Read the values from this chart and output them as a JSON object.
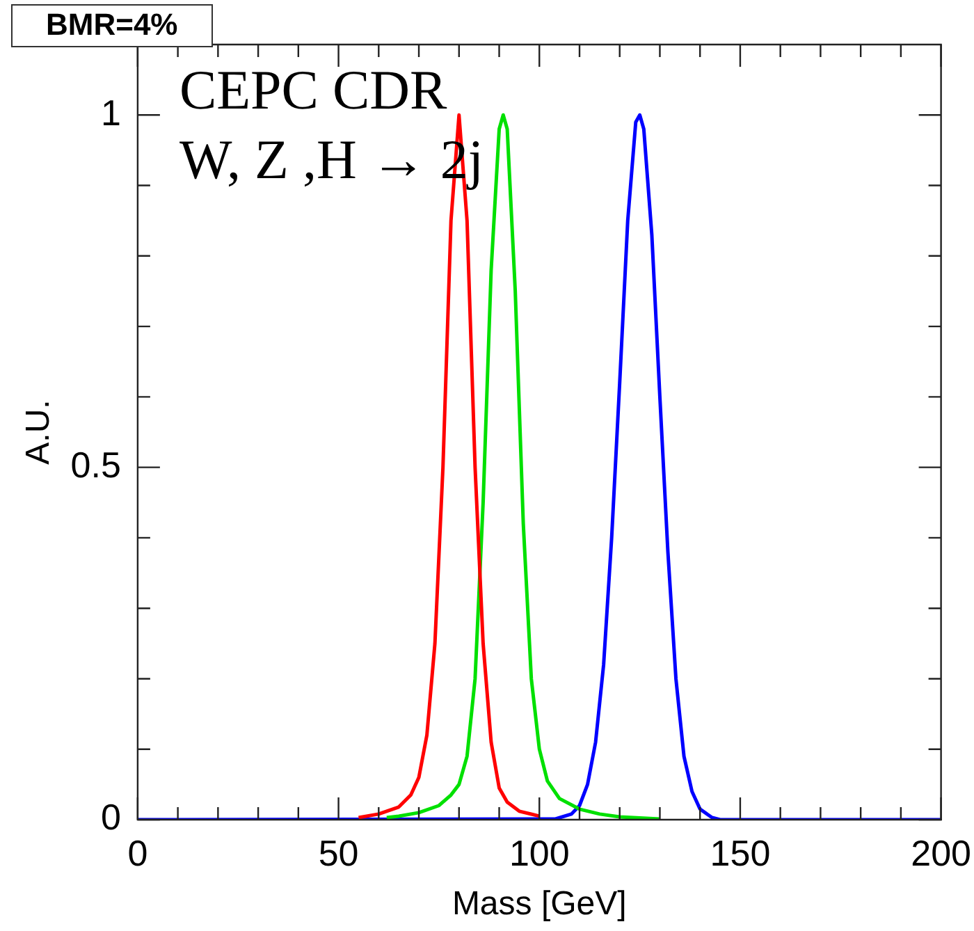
{
  "chart_data": {
    "type": "line",
    "title": "BMR=4%",
    "xlabel": "Mass [GeV]",
    "ylabel": "A.U.",
    "annotations": [
      "CEPC CDR",
      "W, Z ,H → 2j"
    ],
    "xlim": [
      0,
      200
    ],
    "xticks": [
      0,
      {
        "value": 10,
        "label": null
      },
      {
        "value": 20,
        "label": null
      },
      {
        "value": 30,
        "label": null
      },
      {
        "value": 40,
        "label": null
      },
      50,
      {
        "value": 60,
        "label": null
      },
      {
        "value": 70,
        "label": null
      },
      {
        "value": 80,
        "label": null
      },
      {
        "value": 90,
        "label": null
      },
      100,
      {
        "value": 110,
        "label": null
      },
      {
        "value": 120,
        "label": null
      },
      {
        "value": 130,
        "label": null
      },
      {
        "value": 140,
        "label": null
      },
      150,
      {
        "value": 160,
        "label": null
      },
      {
        "value": 170,
        "label": null
      },
      {
        "value": 180,
        "label": null
      },
      {
        "value": 190,
        "label": null
      },
      200
    ],
    "ylim": [
      0,
      1.1
    ],
    "yticks": [
      0,
      {
        "value": 0.1,
        "label": null
      },
      {
        "value": 0.2,
        "label": null
      },
      {
        "value": 0.3,
        "label": null
      },
      {
        "value": 0.4,
        "label": null
      },
      0.5,
      {
        "value": 0.6,
        "label": null
      },
      {
        "value": 0.7,
        "label": null
      },
      {
        "value": 0.8,
        "label": null
      },
      {
        "value": 0.9,
        "label": null
      },
      1
    ],
    "grid": false,
    "legend": false,
    "marker": "none",
    "line_style": "solid",
    "series": [
      {
        "color": "#ff0000",
        "x": [
          55,
          60,
          65,
          68,
          70,
          72,
          74,
          76,
          78,
          80,
          82,
          84,
          86,
          88,
          90,
          92,
          95,
          100
        ],
        "values": [
          0.003,
          0.008,
          0.018,
          0.035,
          0.06,
          0.12,
          0.25,
          0.5,
          0.85,
          1.0,
          0.85,
          0.5,
          0.25,
          0.11,
          0.045,
          0.025,
          0.012,
          0.005
        ]
      },
      {
        "color": "#00e000",
        "x": [
          62,
          65,
          70,
          75,
          78,
          80,
          82,
          84,
          86,
          88,
          90,
          91,
          92,
          94,
          96,
          98,
          100,
          102,
          105,
          110,
          115,
          120,
          130
        ],
        "values": [
          0.003,
          0.005,
          0.01,
          0.02,
          0.035,
          0.05,
          0.09,
          0.2,
          0.45,
          0.78,
          0.98,
          1.0,
          0.98,
          0.75,
          0.42,
          0.2,
          0.1,
          0.055,
          0.03,
          0.015,
          0.008,
          0.004,
          0.001
        ]
      },
      {
        "color": "#0000ff",
        "x": [
          0,
          104,
          108,
          110,
          112,
          114,
          116,
          118,
          120,
          122,
          124,
          125,
          126,
          128,
          130,
          132,
          134,
          136,
          138,
          140,
          143,
          145,
          200
        ],
        "values": [
          0,
          0.001,
          0.008,
          0.02,
          0.05,
          0.11,
          0.22,
          0.4,
          0.62,
          0.85,
          0.99,
          1.0,
          0.98,
          0.83,
          0.6,
          0.38,
          0.2,
          0.09,
          0.04,
          0.015,
          0.003,
          0,
          0
        ]
      }
    ]
  }
}
